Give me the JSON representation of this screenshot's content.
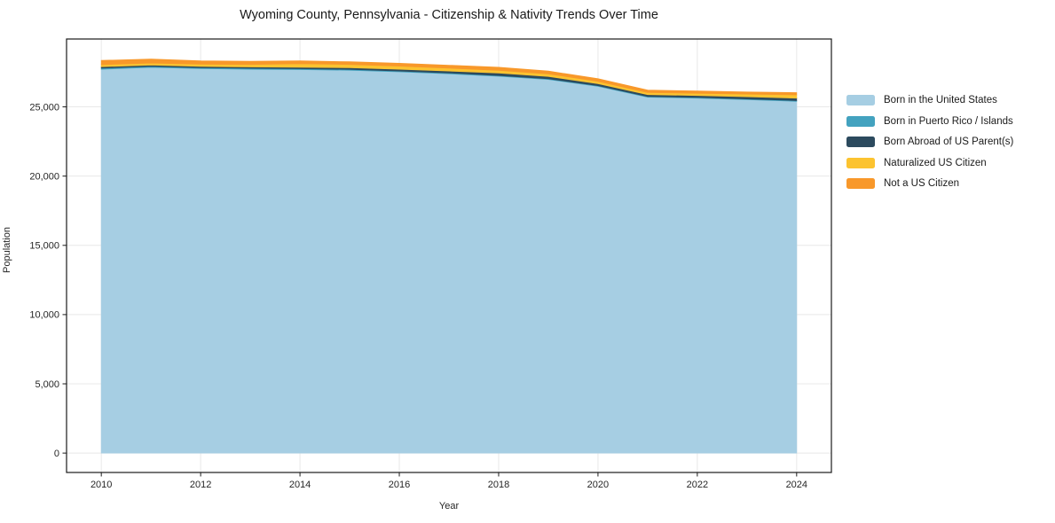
{
  "chart_data": {
    "type": "area",
    "stacked": true,
    "title": "Wyoming County, Pennsylvania - Citizenship & Nativity Trends Over Time",
    "xlabel": "Year",
    "ylabel": "Population",
    "x": [
      2010,
      2011,
      2012,
      2013,
      2014,
      2015,
      2016,
      2017,
      2018,
      2019,
      2020,
      2021,
      2022,
      2023,
      2024
    ],
    "series": [
      {
        "name": "Born in the United States",
        "color": "#a6cee3",
        "values": [
          27720,
          27850,
          27760,
          27720,
          27690,
          27650,
          27530,
          27390,
          27210,
          26980,
          26480,
          25700,
          25630,
          25520,
          25400
        ]
      },
      {
        "name": "Born in Puerto Rico / Islands",
        "color": "#43a2bf",
        "values": [
          80,
          75,
          70,
          65,
          65,
          60,
          60,
          60,
          55,
          55,
          50,
          50,
          50,
          55,
          60
        ]
      },
      {
        "name": "Born Abroad of US Parent(s)",
        "color": "#2c4a5e",
        "values": [
          100,
          95,
          95,
          100,
          110,
          115,
          125,
          140,
          175,
          165,
          150,
          135,
          140,
          155,
          170
        ]
      },
      {
        "name": "Naturalized US Citizen",
        "color": "#fcc330",
        "values": [
          150,
          145,
          155,
          175,
          250,
          240,
          225,
          205,
          195,
          185,
          165,
          150,
          165,
          195,
          240
        ]
      },
      {
        "name": "Not a US Citizen",
        "color": "#f8982a",
        "values": [
          300,
          285,
          240,
          225,
          205,
          190,
          205,
          210,
          220,
          200,
          185,
          170,
          160,
          150,
          160
        ]
      }
    ],
    "x_ticks": [
      "2010",
      "2012",
      "2014",
      "2016",
      "2018",
      "2020",
      "2022",
      "2024"
    ],
    "x_tick_values": [
      2010,
      2012,
      2014,
      2016,
      2018,
      2020,
      2022,
      2024
    ],
    "y_ticks": [
      "0",
      "5,000",
      "10,000",
      "15,000",
      "20,000",
      "25,000"
    ],
    "y_tick_values": [
      0,
      5000,
      10000,
      15000,
      20000,
      25000
    ],
    "xlim": [
      2009.3,
      2024.7
    ],
    "ylim": [
      -1400,
      29900
    ],
    "grid": true,
    "grid_color": "#e8e8e8",
    "frame_color": "#1a1a1a",
    "legend_position": "right-outside"
  }
}
